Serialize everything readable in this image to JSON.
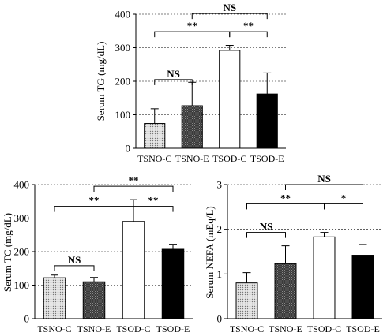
{
  "chart_data": [
    {
      "id": "tg",
      "type": "bar",
      "ylabel": "Serum TG (mg/dL)",
      "ylim": [
        0,
        400
      ],
      "yticks": [
        0,
        100,
        200,
        300,
        400
      ],
      "grid": "dashed horizontal",
      "categories": [
        "TSNO-C",
        "TSNO-E",
        "TSOD-C",
        "TSOD-E"
      ],
      "values": [
        74,
        127,
        292,
        162
      ],
      "errors": [
        44,
        70,
        15,
        63
      ],
      "fills": [
        "dotted",
        "dark-hatched",
        "white",
        "black"
      ],
      "brackets": [
        {
          "from": 0,
          "to": 1,
          "y": 205,
          "label": "NS"
        },
        {
          "from": 2,
          "to": 3,
          "y": 348,
          "label": "**"
        },
        {
          "from": 0,
          "to": 2,
          "y": 348,
          "label": "**"
        },
        {
          "from": 1,
          "to": 3,
          "y": 402,
          "label": "NS"
        }
      ]
    },
    {
      "id": "tc",
      "type": "bar",
      "ylabel": "Serum TC (mg/dL)",
      "ylim": [
        0,
        400
      ],
      "yticks": [
        0,
        100,
        200,
        300,
        400
      ],
      "grid": "dashed horizontal",
      "categories": [
        "TSNO-C",
        "TSNO-E",
        "TSOD-C",
        "TSOD-E"
      ],
      "values": [
        122,
        110,
        290,
        207
      ],
      "errors": [
        8,
        13,
        65,
        15
      ],
      "fills": [
        "dotted",
        "dark-hatched",
        "white",
        "black"
      ],
      "brackets": [
        {
          "from": 0,
          "to": 1,
          "y": 158,
          "label": "NS"
        },
        {
          "from": 0,
          "to": 2,
          "y": 335,
          "label": "**"
        },
        {
          "from": 2,
          "to": 3,
          "y": 335,
          "label": "**"
        },
        {
          "from": 1,
          "to": 3,
          "y": 395,
          "label": "**"
        }
      ]
    },
    {
      "id": "nefa",
      "type": "bar",
      "ylabel": "Serum NEFA (mEq/L)",
      "ylim": [
        0,
        3
      ],
      "yticks": [
        0,
        1,
        2,
        3
      ],
      "grid": "dashed horizontal",
      "categories": [
        "TSNO-C",
        "TSNO-E",
        "TSOD-C",
        "TSOD-E"
      ],
      "values": [
        0.8,
        1.23,
        1.83,
        1.42
      ],
      "errors": [
        0.23,
        0.4,
        0.1,
        0.24
      ],
      "fills": [
        "dotted",
        "dark-hatched",
        "white",
        "black"
      ],
      "brackets": [
        {
          "from": 0,
          "to": 1,
          "y": 1.93,
          "label": "NS"
        },
        {
          "from": 0,
          "to": 2,
          "y": 2.57,
          "label": "**"
        },
        {
          "from": 2,
          "to": 3,
          "y": 2.57,
          "label": "*"
        },
        {
          "from": 1,
          "to": 3,
          "y": 3.0,
          "label": "NS"
        }
      ]
    }
  ]
}
